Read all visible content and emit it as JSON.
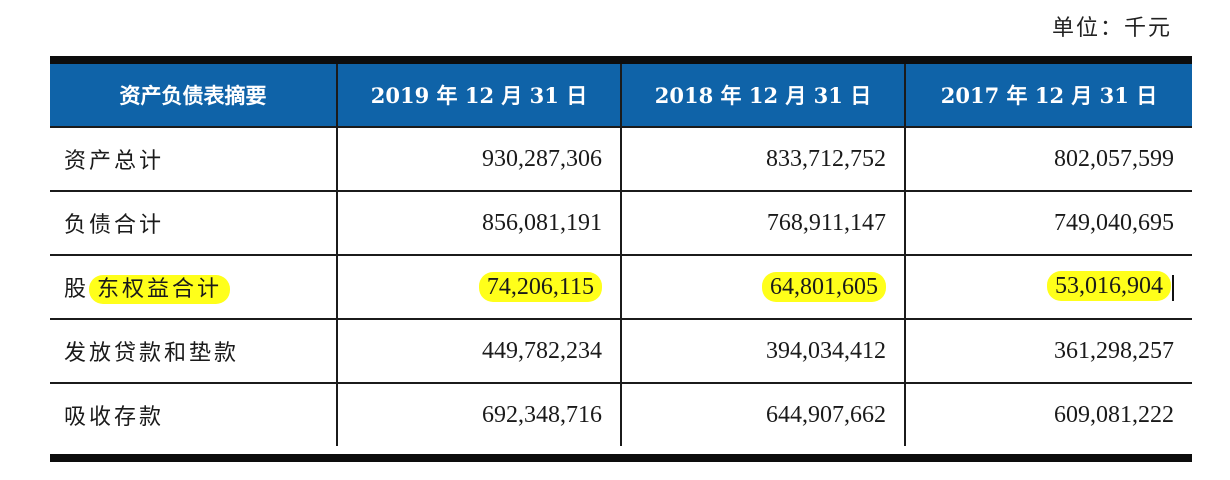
{
  "unit_label": "单位：千元",
  "table": {
    "headers": [
      "资产负债表摘要",
      "2019 年 12 月 31 日",
      "2018 年 12 月 31 日",
      "2017 年 12 月 31 日"
    ],
    "rows": [
      {
        "label": "资产总计",
        "values": [
          "930,287,306",
          "833,712,752",
          "802,057,599"
        ]
      },
      {
        "label": "负债合计",
        "values": [
          "856,081,191",
          "768,911,147",
          "749,040,695"
        ]
      },
      {
        "label_prefix": "股",
        "label_highlight": "东权益合计",
        "values": [
          "74,206,115",
          "64,801,605",
          "53,016,904"
        ]
      },
      {
        "label": "发放贷款和垫款",
        "values": [
          "449,782,234",
          "394,034,412",
          "361,298,257"
        ]
      },
      {
        "label": "吸收存款",
        "values": [
          "692,348,716",
          "644,907,662",
          "609,081,222"
        ]
      }
    ]
  },
  "colors": {
    "header_bg": "#0f63a8",
    "highlight": "#ffff1a"
  }
}
